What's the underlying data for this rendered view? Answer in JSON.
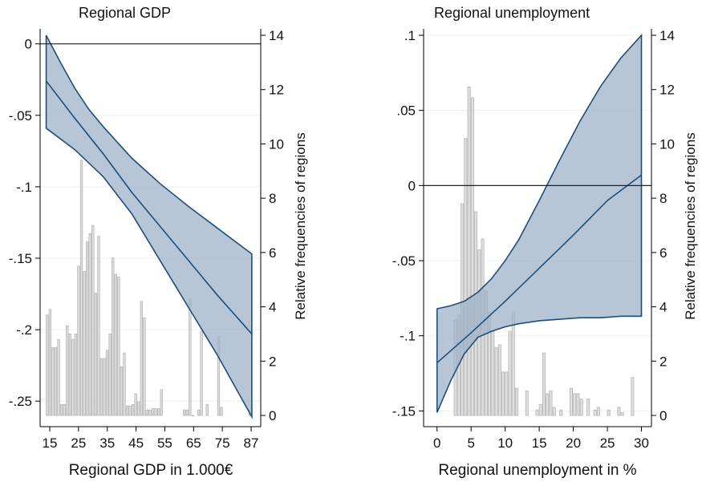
{
  "colors": {
    "band_fill": "#9fb3c8",
    "band_edge": "#1f4e79",
    "hist_fill": "#d9d9d9",
    "hist_edge": "#b5b5b5",
    "grid": "#eaf1f5",
    "zero_line": "#222222"
  },
  "chart_data": [
    {
      "type": "area",
      "title": "Regional GDP",
      "xlabel": "Regional GDP in 1.000€",
      "ylabel": "",
      "y2label": "Relative frequencies of regions",
      "xlim": [
        14,
        89
      ],
      "ylim": [
        -0.26,
        0.006
      ],
      "y2lim": [
        0,
        14
      ],
      "x_ticks": [
        15,
        25,
        35,
        45,
        55,
        65,
        75,
        87
      ],
      "x_tick_labels": [
        "15",
        "25",
        "35",
        "45",
        "55",
        "65",
        "75",
        "87"
      ],
      "y_ticks": [
        0,
        -0.05,
        -0.1,
        -0.15,
        -0.2,
        -0.25
      ],
      "y_tick_labels": [
        "0",
        "-.05",
        "-.1",
        "-.15",
        "-.2",
        "-.25"
      ],
      "y2_ticks": [
        0,
        2,
        4,
        6,
        8,
        10,
        12,
        14
      ],
      "y2_tick_labels": [
        "0",
        "2",
        "4",
        "6",
        "8",
        "10",
        "12",
        "14"
      ],
      "reference_line_y": 0,
      "grid": true,
      "series": [
        {
          "kind": "estimate",
          "x": [
            15,
            25,
            35,
            45,
            55,
            65,
            75,
            87
          ],
          "y": [
            -0.026,
            -0.052,
            -0.077,
            -0.104,
            -0.128,
            -0.152,
            -0.176,
            -0.203
          ]
        },
        {
          "kind": "ci_upper",
          "x": [
            15,
            20,
            25,
            30,
            35,
            45,
            55,
            65,
            75,
            87
          ],
          "y": [
            0.006,
            -0.013,
            -0.031,
            -0.046,
            -0.058,
            -0.08,
            -0.098,
            -0.114,
            -0.129,
            -0.147
          ]
        },
        {
          "kind": "ci_lower",
          "x": [
            15,
            25,
            35,
            45,
            55,
            65,
            75,
            87
          ],
          "y": [
            -0.059,
            -0.074,
            -0.093,
            -0.119,
            -0.152,
            -0.185,
            -0.218,
            -0.261
          ]
        }
      ],
      "histogram": {
        "width": 1.0,
        "x": [
          15.5,
          16.5,
          17.5,
          18.5,
          19.5,
          20.5,
          21.5,
          22.5,
          23.5,
          24.5,
          25.5,
          26.5,
          27.5,
          28.5,
          29.5,
          30.5,
          31.5,
          32.5,
          33.5,
          34.5,
          35.5,
          36.5,
          37.5,
          38.5,
          39.5,
          40.5,
          41.5,
          42.5,
          43.5,
          44.5,
          45.5,
          46.5,
          47.5,
          48.5,
          49.5,
          50.5,
          51.5,
          52.5,
          53.5,
          54.5,
          55.5,
          63.5,
          64.5,
          65.5,
          66.5,
          68.5,
          69.5,
          71.5,
          75.5,
          76.5,
          86.5
        ],
        "y": [
          3.7,
          3.9,
          2.5,
          2.5,
          2.8,
          0.4,
          0.4,
          3.3,
          3.0,
          2.8,
          3.0,
          5.5,
          9.4,
          5.3,
          6.4,
          6.7,
          7.0,
          4.5,
          6.6,
          2.1,
          2.1,
          2.4,
          3.0,
          5.8,
          5.2,
          5.1,
          1.8,
          2.3,
          0.35,
          0.35,
          0.4,
          0.8,
          0.5,
          4.2,
          3.6,
          0.2,
          0.2,
          0.25,
          0.25,
          0.25,
          0.95,
          0.2,
          0.2,
          4.3,
          0.0,
          0.2,
          3.1,
          0.4,
          2.9,
          0.3,
          0.2
        ]
      }
    },
    {
      "type": "area",
      "title": "Regional unemployment",
      "xlabel": "Regional unemployment in %",
      "ylabel": "",
      "y2label": "Relative frequencies of regions",
      "xlim": [
        -1.5,
        31
      ],
      "ylim": [
        -0.153,
        0.1
      ],
      "y2lim": [
        0,
        14
      ],
      "x_ticks": [
        0,
        5,
        10,
        15,
        20,
        25,
        30
      ],
      "x_tick_labels": [
        "0",
        "5",
        "10",
        "15",
        "20",
        "25",
        "30"
      ],
      "y_ticks": [
        0.1,
        0.05,
        0,
        -0.05,
        -0.1,
        -0.15
      ],
      "y_tick_labels": [
        ".1",
        ".05",
        "0",
        "-.05",
        "-.1",
        "-.15"
      ],
      "y2_ticks": [
        0,
        2,
        4,
        6,
        8,
        10,
        12,
        14
      ],
      "y2_tick_labels": [
        "0",
        "2",
        "4",
        "6",
        "8",
        "10",
        "12",
        "14"
      ],
      "reference_line_y": 0,
      "grid": true,
      "series": [
        {
          "kind": "estimate",
          "x": [
            0,
            5,
            10,
            15,
            20,
            25,
            30
          ],
          "y": [
            -0.118,
            -0.098,
            -0.077,
            -0.055,
            -0.033,
            -0.01,
            0.007
          ]
        },
        {
          "kind": "ci_upper",
          "x": [
            0,
            2,
            4,
            6,
            8,
            10,
            12,
            15,
            18,
            21,
            24,
            27,
            30
          ],
          "y": [
            -0.082,
            -0.08,
            -0.077,
            -0.071,
            -0.062,
            -0.05,
            -0.036,
            -0.01,
            0.017,
            0.043,
            0.066,
            0.085,
            0.1
          ]
        },
        {
          "kind": "ci_lower",
          "x": [
            0,
            2,
            4,
            6,
            8,
            10,
            12,
            15,
            18,
            21,
            24,
            27,
            30
          ],
          "y": [
            -0.151,
            -0.13,
            -0.112,
            -0.101,
            -0.097,
            -0.094,
            -0.092,
            -0.09,
            -0.089,
            -0.088,
            -0.088,
            -0.087,
            -0.087
          ]
        }
      ],
      "histogram": {
        "width": 0.5,
        "x": [
          2.75,
          3.25,
          3.75,
          4.25,
          4.75,
          5.25,
          5.75,
          6.25,
          6.75,
          7.25,
          7.75,
          8.25,
          8.75,
          9.25,
          9.75,
          10.25,
          10.75,
          11.25,
          11.75,
          13.25,
          14.75,
          15.25,
          15.75,
          16.25,
          16.75,
          17.25,
          18.25,
          19.75,
          20.25,
          20.75,
          21.25,
          22.25,
          23.25,
          23.75,
          25.25,
          26.75,
          27.25,
          28.75
        ],
        "y": [
          3.5,
          3.7,
          7.8,
          10.2,
          12.1,
          11.7,
          7.5,
          6.1,
          6.5,
          4.6,
          3.8,
          3.1,
          2.5,
          2.6,
          1.6,
          1.6,
          3.1,
          3.8,
          1.0,
          0.9,
          0.2,
          0.4,
          2.3,
          0.8,
          0.9,
          0.3,
          0.2,
          1.0,
          0.8,
          0.8,
          0.6,
          0.6,
          0.2,
          0.3,
          0.2,
          0.3,
          0.1,
          1.4
        ]
      }
    }
  ]
}
